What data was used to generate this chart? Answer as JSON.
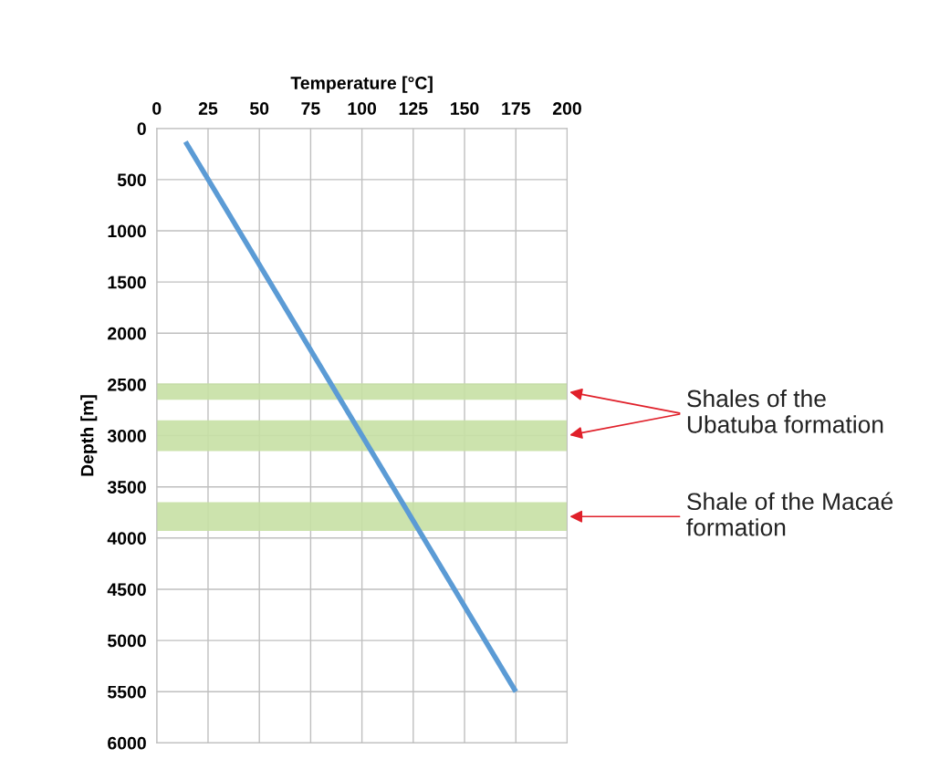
{
  "chart_data": {
    "type": "line",
    "xlabel": "Temperature [°C]",
    "ylabel": "Depth [m]",
    "xlim": [
      0,
      200
    ],
    "xticks": [
      0,
      25,
      50,
      75,
      100,
      125,
      150,
      175,
      200
    ],
    "ylim": [
      6000,
      0
    ],
    "yticks": [
      0,
      500,
      1000,
      1500,
      2000,
      2500,
      3000,
      3500,
      4000,
      4500,
      5000,
      5500,
      6000
    ],
    "grid": true,
    "marker": "none",
    "line_style": "solid",
    "series": [
      {
        "color": "#5b9bd5",
        "x": [
          14,
          175
        ],
        "values": [
          130,
          5500
        ]
      }
    ],
    "bands": [
      {
        "axis": "y",
        "from": 2490,
        "to": 2650,
        "color": "#c6e0a4"
      },
      {
        "axis": "y",
        "from": 2850,
        "to": 3150,
        "color": "#c6e0a4"
      },
      {
        "axis": "y",
        "from": 3650,
        "to": 3930,
        "color": "#c6e0a4"
      }
    ],
    "annotations": [
      {
        "text": "Shales of the\nUbatuba formation",
        "x": 200,
        "y": 2570
      },
      {
        "text": "Shale of the Macaé\nformation",
        "x": 200,
        "y": 3790
      }
    ]
  }
}
